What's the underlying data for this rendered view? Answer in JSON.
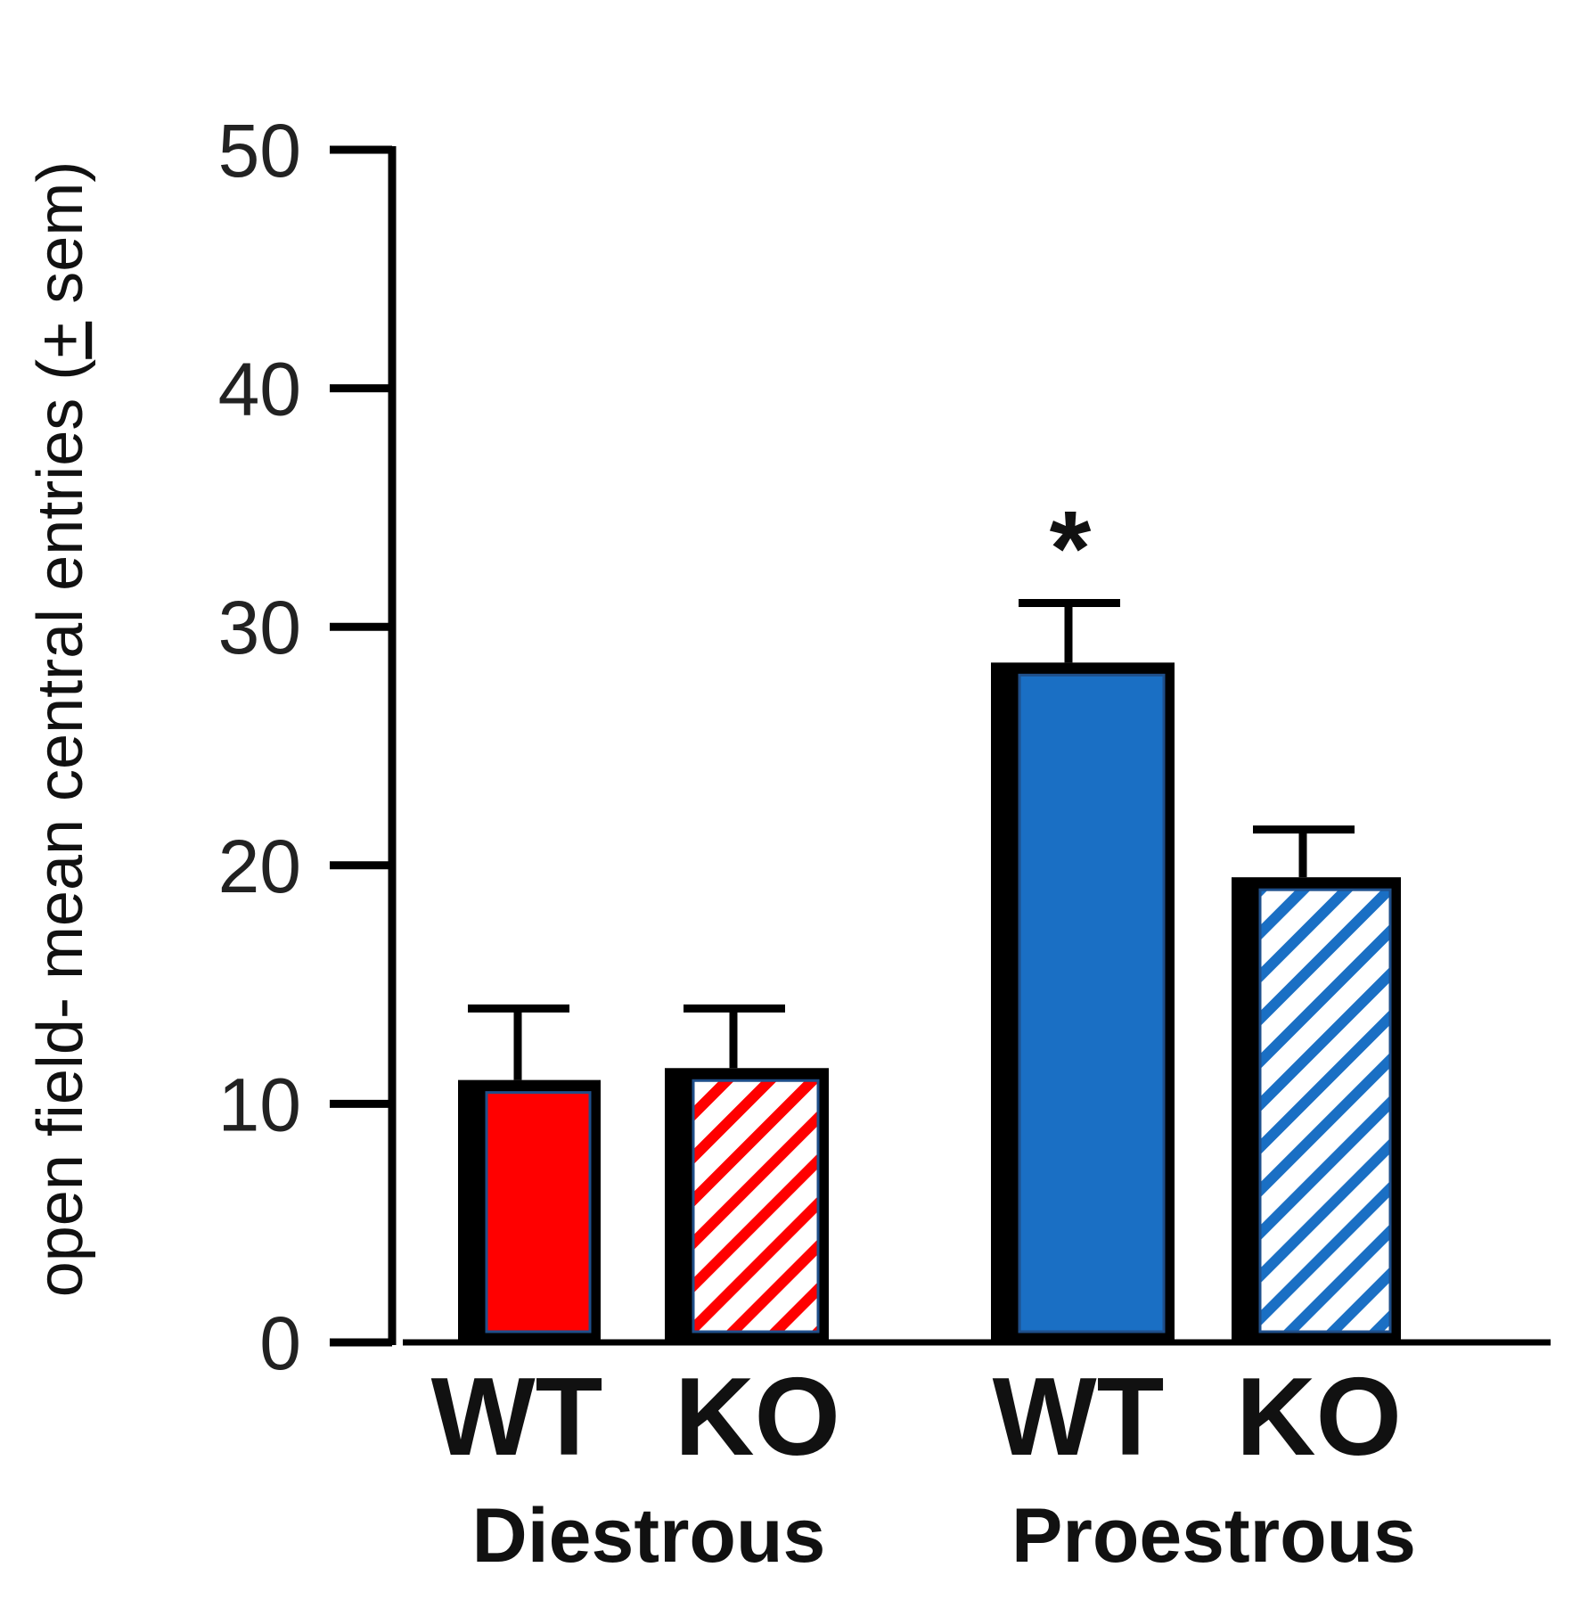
{
  "chart_data": {
    "type": "bar",
    "title": "",
    "ylabel": "open field- mean central entries (+ sem)",
    "ylabel_parts": {
      "before": "open field- mean central entries (",
      "pm": "+",
      "after": " sem)"
    },
    "ylim": [
      0,
      50
    ],
    "yticks": [
      0,
      10,
      20,
      30,
      40,
      50
    ],
    "categories": [
      "WT",
      "KO",
      "WT",
      "KO"
    ],
    "groups": [
      "Diestrous",
      "Proestrous"
    ],
    "bars": [
      {
        "group": "Diestrous",
        "label": "WT",
        "value": 11,
        "sem": 3,
        "fill": "#ff0000",
        "pattern": "solid",
        "annotation": ""
      },
      {
        "group": "Diestrous",
        "label": "KO",
        "value": 11.5,
        "sem": 2.5,
        "fill": "#ff0000",
        "pattern": "hatched",
        "annotation": ""
      },
      {
        "group": "Proestrous",
        "label": "WT",
        "value": 28.5,
        "sem": 2.5,
        "fill": "#1a6fc4",
        "pattern": "solid",
        "annotation": "*"
      },
      {
        "group": "Proestrous",
        "label": "KO",
        "value": 19.5,
        "sem": 2,
        "fill": "#1a6fc4",
        "pattern": "hatched",
        "annotation": ""
      }
    ]
  },
  "colors": {
    "axis": "#000000",
    "red": "#ff0000",
    "blue": "#1a6fc4",
    "bar_outline": "#1f4f8a"
  }
}
